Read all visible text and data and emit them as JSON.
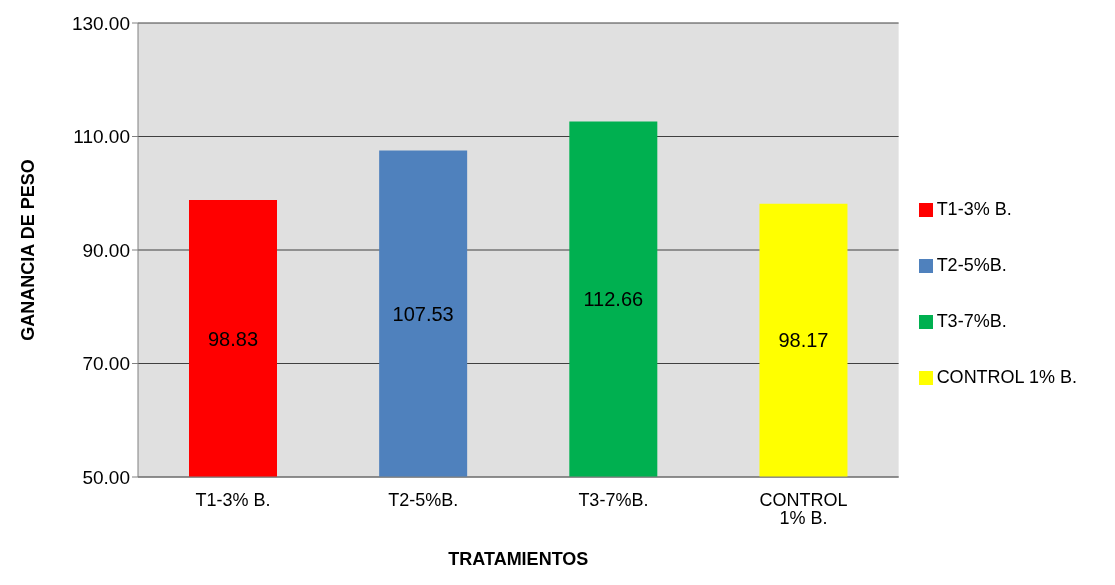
{
  "chart_data": {
    "type": "bar",
    "xlabel": "TRATAMIENTOS",
    "ylabel": "GANANCIA DE PESO",
    "categories": [
      "T1-3% B.",
      "T2-5%B.",
      "T3-7%B.",
      "CONTROL 1% B."
    ],
    "series": [
      {
        "name": "T1-3% B.",
        "color": "#ff0000",
        "values": [
          98.83,
          null,
          null,
          null
        ]
      },
      {
        "name": "T2-5%B.",
        "color": "#4f81bd",
        "values": [
          null,
          107.53,
          null,
          null
        ]
      },
      {
        "name": "T3-7%B.",
        "color": "#00b050",
        "values": [
          null,
          null,
          112.66,
          null
        ]
      },
      {
        "name": "CONTROL 1% B.",
        "color": "#ffff00",
        "values": [
          null,
          null,
          null,
          98.17
        ]
      }
    ],
    "stacked": true,
    "ylim": [
      50,
      130
    ],
    "yticks": [
      {
        "value": 50,
        "label": "50.00"
      },
      {
        "value": 70,
        "label": "70.00"
      },
      {
        "value": 90,
        "label": "90.00"
      },
      {
        "value": 110,
        "label": "110.00"
      },
      {
        "value": 130,
        "label": "130.00"
      }
    ],
    "grid": "y",
    "legend": "right",
    "data_labels": true
  }
}
